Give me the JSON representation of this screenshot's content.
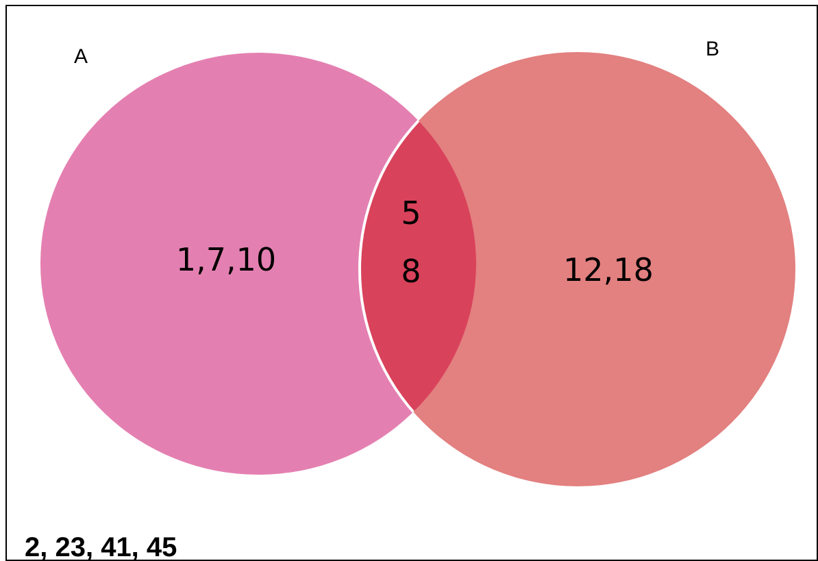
{
  "sets": {
    "a": {
      "label": "A",
      "only_elements": "1,7,10",
      "color": "#e480b1"
    },
    "b": {
      "label": "B",
      "only_elements": "12,18",
      "color": "#e38080"
    }
  },
  "intersection": {
    "line1": "5",
    "line2": "8",
    "color": "#d9425b"
  },
  "universe": {
    "outside_elements": "2, 23, 41, 45",
    "border_color": "#000000"
  }
}
